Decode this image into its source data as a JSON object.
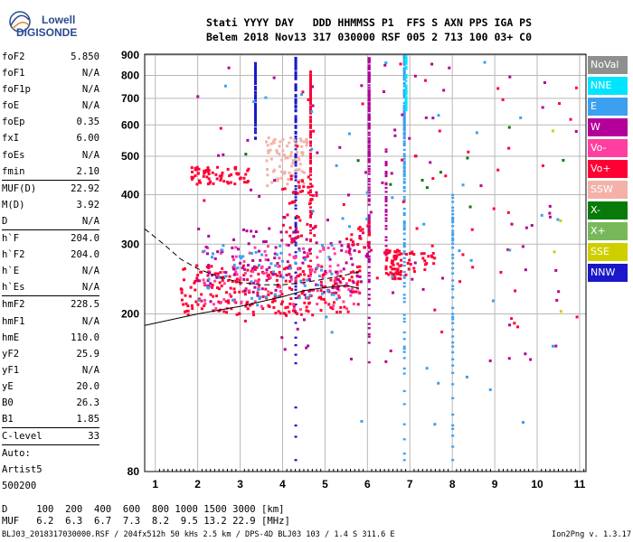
{
  "logo": {
    "line1": "Lowell",
    "line2": "DIGISONDE"
  },
  "header": {
    "labels": "Stati YYYY DAY   DDD HHMMSS P1  FFS S AXN PPS IGA PS",
    "values": "Belem 2018 Nov13 317 030000 RSF 005 2 713 100 03+ C0"
  },
  "params": [
    {
      "name": "foF2",
      "value": "5.850"
    },
    {
      "name": "foF1",
      "value": "N/A"
    },
    {
      "name": "foF1p",
      "value": "N/A"
    },
    {
      "name": "foE",
      "value": "N/A"
    },
    {
      "name": "foEp",
      "value": "0.35"
    },
    {
      "name": "fxI",
      "value": "6.00"
    },
    {
      "name": "foEs",
      "value": "N/A"
    },
    {
      "name": "fmin",
      "value": "2.10"
    },
    {
      "name": "MUF(D)",
      "value": "22.92",
      "sep": true
    },
    {
      "name": "M(D)",
      "value": "3.92"
    },
    {
      "name": "D",
      "value": "N/A"
    },
    {
      "name": "h`F",
      "value": "204.0",
      "sep": true
    },
    {
      "name": "h`F2",
      "value": "204.0"
    },
    {
      "name": "h`E",
      "value": "N/A"
    },
    {
      "name": "h`Es",
      "value": "N/A"
    },
    {
      "name": "hmF2",
      "value": "228.5",
      "sep": true
    },
    {
      "name": "hmF1",
      "value": "N/A"
    },
    {
      "name": "hmE",
      "value": "110.0"
    },
    {
      "name": "yF2",
      "value": "25.9"
    },
    {
      "name": "yF1",
      "value": "N/A"
    },
    {
      "name": "yE",
      "value": "20.0"
    },
    {
      "name": "B0",
      "value": "26.3"
    },
    {
      "name": "B1",
      "value": "1.85"
    },
    {
      "name": "C-level",
      "value": "33",
      "sep": true
    },
    {
      "name": "Auto:",
      "value": "",
      "sep": true
    },
    {
      "name": "Artist5",
      "value": ""
    },
    {
      "name": "500200",
      "value": ""
    }
  ],
  "muf_table": {
    "row_d": "D     100  200  400  600  800 1000 1500 3000 [km]",
    "row_muf": "MUF   6.2  6.3  6.7  7.3  8.2  9.5 13.2 22.9 [MHz]"
  },
  "footer": {
    "left": "BLJ03_2018317030000.RSF / 204fx512h 50 kHs 2.5 km / DPS-4D BLJ03 103 / 1.4 S 311.6 E",
    "right": "Ion2Png v. 1.3.17"
  },
  "legend": [
    {
      "label": "NoVal",
      "color": "#8f8f8f"
    },
    {
      "label": "NNE",
      "color": "#00e5ff"
    },
    {
      "label": "E",
      "color": "#3ba0f0"
    },
    {
      "label": "W",
      "color": "#b3009a"
    },
    {
      "label": "Vo-",
      "color": "#ff3fa0"
    },
    {
      "label": "Vo+",
      "color": "#ff0033"
    },
    {
      "label": "SSW",
      "color": "#f3b1a8"
    },
    {
      "label": "X-",
      "color": "#087a0a"
    },
    {
      "label": "X+",
      "color": "#79b85a"
    },
    {
      "label": "SSE",
      "color": "#cfcf00"
    },
    {
      "label": "NNW",
      "color": "#1a18c8"
    }
  ],
  "chart_data": {
    "type": "scatter",
    "title": "",
    "xlabel": "",
    "ylabel": "",
    "xlim": [
      0.75,
      11.15
    ],
    "ylim": [
      80,
      905
    ],
    "x_ticks": [
      1,
      2,
      3,
      4,
      5,
      6,
      7,
      8,
      9,
      10,
      11
    ],
    "y_ticks": [
      80,
      200,
      300,
      400,
      500,
      600,
      700,
      800,
      900
    ],
    "y_scale": "log",
    "grid": true,
    "curves": [
      {
        "name": "profile",
        "style": "solid",
        "points": [
          [
            0.75,
            187
          ],
          [
            2.0,
            200
          ],
          [
            3.0,
            209
          ],
          [
            4.0,
            221
          ],
          [
            4.5,
            229
          ],
          [
            5.0,
            233
          ],
          [
            5.5,
            236
          ],
          [
            5.8,
            232
          ]
        ]
      },
      {
        "name": "trace",
        "style": "dashed",
        "points": [
          [
            0.75,
            328
          ],
          [
            1.2,
            300
          ],
          [
            1.6,
            275
          ],
          [
            2.0,
            260
          ],
          [
            2.5,
            248
          ],
          [
            3.0,
            240
          ],
          [
            3.5,
            237
          ],
          [
            4.0,
            237
          ],
          [
            4.5,
            240
          ],
          [
            5.0,
            245
          ],
          [
            5.5,
            251
          ],
          [
            5.85,
            256
          ]
        ]
      }
    ],
    "echo_groups": [
      {
        "color": "#ff0033",
        "x": [
          1.6,
          5.9
        ],
        "y": [
          198,
          265
        ],
        "n": 260
      },
      {
        "color": "#ff3fa0",
        "x": [
          2.0,
          5.8
        ],
        "y": [
          205,
          300
        ],
        "n": 120
      },
      {
        "color": "#b3009a",
        "x": [
          2.0,
          6.0
        ],
        "y": [
          220,
          330
        ],
        "n": 110
      },
      {
        "color": "#3ba0f0",
        "x": [
          2.0,
          5.5
        ],
        "y": [
          215,
          300
        ],
        "n": 60
      },
      {
        "color": "#ff0033",
        "x": [
          6.4,
          6.8
        ],
        "y": [
          245,
          290
        ],
        "n": 60
      },
      {
        "color": "#ff0033",
        "x": [
          6.9,
          7.6
        ],
        "y": [
          250,
          290
        ],
        "n": 25
      },
      {
        "color": "#ff0033",
        "x": [
          1.8,
          3.2
        ],
        "y": [
          425,
          470
        ],
        "n": 70
      },
      {
        "color": "#f3b1a8",
        "x": [
          3.6,
          4.6
        ],
        "y": [
          420,
          560
        ],
        "n": 80
      },
      {
        "color": "#ff0033",
        "x": [
          4.0,
          4.8
        ],
        "y": [
          300,
          450
        ],
        "n": 50
      },
      {
        "color": "#ff0033",
        "x": [
          5.5,
          6.1
        ],
        "y": [
          285,
          340
        ],
        "n": 25
      },
      {
        "color": "#b3009a",
        "x": [
          2.0,
          11.0
        ],
        "y": [
          150,
          880
        ],
        "n": 80
      },
      {
        "color": "#ff0033",
        "x": [
          2.0,
          11.0
        ],
        "y": [
          180,
          870
        ],
        "n": 50
      },
      {
        "color": "#3ba0f0",
        "x": [
          2.0,
          10.5
        ],
        "y": [
          100,
          880
        ],
        "n": 40
      },
      {
        "color": "#087a0a",
        "x": [
          2.5,
          10.8
        ],
        "y": [
          280,
          600
        ],
        "n": 10
      },
      {
        "color": "#cfcf00",
        "x": [
          10.3,
          10.8
        ],
        "y": [
          185,
          780
        ],
        "n": 4
      }
    ],
    "vertical_streaks": [
      {
        "color": "#1a18c8",
        "x": 4.3,
        "y": [
          85,
          890
        ]
      },
      {
        "color": "#b3009a",
        "x": 6.03,
        "y": [
          150,
          880
        ]
      },
      {
        "color": "#b3009a",
        "x": 6.43,
        "y": [
          280,
          520
        ]
      },
      {
        "color": "#3ba0f0",
        "x": 6.86,
        "y": [
          85,
          895
        ]
      },
      {
        "color": "#00e5ff",
        "x": 6.9,
        "y": [
          650,
          895
        ]
      },
      {
        "color": "#3ba0f0",
        "x": 8.0,
        "y": [
          85,
          400
        ]
      },
      {
        "color": "#1a18c8",
        "x": 3.35,
        "y": [
          550,
          860
        ]
      },
      {
        "color": "#ff0033",
        "x": 4.65,
        "y": [
          240,
          820
        ]
      }
    ]
  }
}
